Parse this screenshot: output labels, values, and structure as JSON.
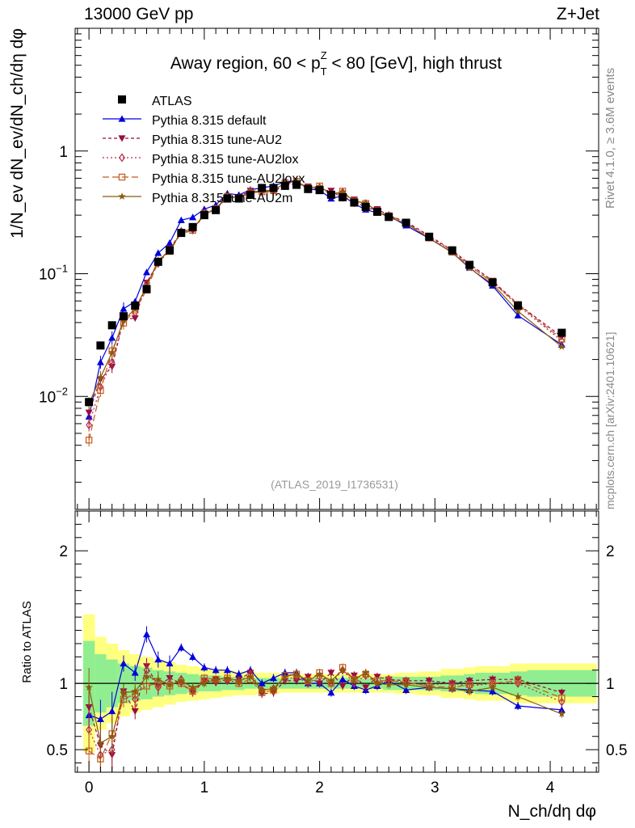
{
  "header": {
    "energy_label": "13000 GeV pp",
    "process_label": "Z+Jet"
  },
  "side_labels": {
    "rivet": "Rivet 4.1.0, ≥ 3.6M events",
    "source": "mcplots.cern.ch [arXiv:2401.10621]"
  },
  "chart_data": {
    "type": "line",
    "title": "Away region, 60 < p_T^Z < 80 [GeV], high thrust",
    "title_parts": {
      "pre": "Away region, 60 < p",
      "sup": "Z",
      "sub": "T",
      "post": " < 80 [GeV], high thrust"
    },
    "analysis_id": "(ATLAS_2019_I1736531)",
    "xlabel": "N_ch/dη dφ",
    "ylabel": "1/N_ev dN_ev/dN_ch/dη dφ",
    "ratio_ylabel": "Ratio to ATLAS",
    "xlim": [
      -0.12,
      4.42
    ],
    "ylim": [
      0.0012,
      10
    ],
    "yscale": "log",
    "ratio_ylim": [
      0.33,
      2.3
    ],
    "x_ticks": [
      0,
      1,
      2,
      3,
      4
    ],
    "y_ticks": [
      {
        "value": 0.01,
        "base": "10",
        "exp": "−2"
      },
      {
        "value": 0.1,
        "base": "10",
        "exp": "−1"
      },
      {
        "value": 1,
        "base": "1",
        "exp": ""
      }
    ],
    "ratio_ticks": [
      0.5,
      1,
      2
    ],
    "legend_position": "top-left",
    "x": [
      0,
      0.1,
      0.2,
      0.3,
      0.4,
      0.5,
      0.6,
      0.7,
      0.8,
      0.9,
      1.0,
      1.1,
      1.2,
      1.3,
      1.4,
      1.5,
      1.6,
      1.7,
      1.8,
      1.9,
      2.0,
      2.1,
      2.2,
      2.3,
      2.4,
      2.5,
      2.6,
      2.75,
      2.95,
      3.15,
      3.3,
      3.5,
      3.72,
      4.1
    ],
    "data": {
      "name": "ATLAS",
      "color": "#000000",
      "values": [
        0.009,
        0.026,
        0.038,
        0.045,
        0.055,
        0.075,
        0.125,
        0.155,
        0.215,
        0.24,
        0.3,
        0.33,
        0.41,
        0.41,
        0.44,
        0.5,
        0.5,
        0.52,
        0.53,
        0.49,
        0.48,
        0.44,
        0.42,
        0.38,
        0.35,
        0.32,
        0.29,
        0.26,
        0.2,
        0.155,
        0.118,
        0.085,
        0.055,
        0.033
      ]
    },
    "bands": {
      "x_edges": [
        -0.05,
        0.05,
        0.15,
        0.25,
        0.35,
        0.45,
        0.55,
        0.65,
        0.75,
        0.85,
        0.95,
        1.05,
        1.15,
        1.25,
        1.35,
        1.45,
        1.55,
        1.65,
        1.75,
        1.85,
        1.95,
        2.05,
        2.15,
        2.25,
        2.35,
        2.45,
        2.55,
        2.65,
        2.85,
        3.05,
        3.25,
        3.35,
        3.65,
        3.8,
        4.4
      ],
      "yellow_half": [
        0.52,
        0.35,
        0.3,
        0.25,
        0.22,
        0.2,
        0.18,
        0.16,
        0.14,
        0.13,
        0.12,
        0.11,
        0.1,
        0.09,
        0.09,
        0.08,
        0.08,
        0.07,
        0.07,
        0.07,
        0.07,
        0.07,
        0.07,
        0.07,
        0.07,
        0.07,
        0.07,
        0.08,
        0.09,
        0.11,
        0.12,
        0.13,
        0.15,
        0.15
      ],
      "green_half": [
        0.32,
        0.22,
        0.18,
        0.15,
        0.13,
        0.12,
        0.1,
        0.09,
        0.08,
        0.07,
        0.06,
        0.06,
        0.05,
        0.05,
        0.04,
        0.04,
        0.04,
        0.04,
        0.04,
        0.04,
        0.04,
        0.04,
        0.04,
        0.04,
        0.04,
        0.04,
        0.05,
        0.05,
        0.05,
        0.06,
        0.07,
        0.08,
        0.09,
        0.1
      ]
    },
    "series": [
      {
        "name": "Pythia 8.315 default",
        "color": "#0000dd",
        "dash": "solid",
        "marker": "triangle-up",
        "ratio": [
          0.76,
          0.73,
          0.79,
          1.15,
          1.08,
          1.37,
          1.18,
          1.15,
          1.27,
          1.2,
          1.12,
          1.1,
          1.1,
          1.07,
          1.1,
          1.0,
          1.04,
          1.08,
          1.08,
          1.0,
          1.0,
          0.93,
          1.03,
          0.98,
          0.95,
          0.98,
          1.02,
          0.95,
          0.97,
          0.96,
          0.95,
          0.94,
          0.83,
          0.8
        ]
      },
      {
        "name": "Pythia 8.315 tune-AU2",
        "color": "#9a0c3f",
        "dash": "4,3",
        "marker": "triangle-down",
        "ratio": [
          0.82,
          0.53,
          0.46,
          0.94,
          0.79,
          1.13,
          0.98,
          1.04,
          1.0,
          0.93,
          1.02,
          1.03,
          1.02,
          1.03,
          1.08,
          0.92,
          0.93,
          1.02,
          1.02,
          1.05,
          1.0,
          1.08,
          0.98,
          1.06,
          0.97,
          1.05,
          1.03,
          1.02,
          1.02,
          1.0,
          1.02,
          1.03,
          1.03,
          0.93
        ]
      },
      {
        "name": "Pythia 8.315 tune-AU2lox",
        "color": "#b22a4a",
        "dash": "2,3",
        "marker": "diamond-open",
        "ratio": [
          0.65,
          0.46,
          0.5,
          0.93,
          0.88,
          1.1,
          0.97,
          1.0,
          1.03,
          0.95,
          1.02,
          1.01,
          1.02,
          1.01,
          1.07,
          0.95,
          0.96,
          1.03,
          1.05,
          1.0,
          1.05,
          1.0,
          1.1,
          1.0,
          1.06,
          1.0,
          1.03,
          1.0,
          0.99,
          1.0,
          0.98,
          1.0,
          1.0,
          0.86
        ]
      },
      {
        "name": "Pythia 8.315 tune-AU2loxx",
        "color": "#c45a1c",
        "dash": "8,4",
        "marker": "square-open",
        "ratio": [
          0.49,
          0.43,
          0.62,
          0.88,
          0.92,
          0.98,
          1.0,
          0.98,
          1.0,
          0.94,
          1.04,
          1.03,
          1.04,
          1.0,
          1.03,
          0.93,
          0.95,
          1.06,
          1.07,
          1.02,
          1.08,
          1.0,
          1.12,
          1.03,
          1.07,
          1.02,
          1.02,
          1.01,
          0.98,
          0.97,
          0.99,
          1.0,
          1.02,
          0.89
        ]
      },
      {
        "name": "Pythia 8.315 tune-AU2m",
        "color": "#8b5a0c",
        "dash": "solid",
        "marker": "star",
        "ratio": [
          0.97,
          0.55,
          0.6,
          0.93,
          0.94,
          1.05,
          1.03,
          0.99,
          1.02,
          0.97,
          1.0,
          1.03,
          1.04,
          1.02,
          1.05,
          0.95,
          0.96,
          1.05,
          1.07,
          1.02,
          1.07,
          1.02,
          1.1,
          1.03,
          1.08,
          1.0,
          0.99,
          0.99,
          0.97,
          0.96,
          0.94,
          0.97,
          0.9,
          0.77
        ]
      }
    ]
  }
}
